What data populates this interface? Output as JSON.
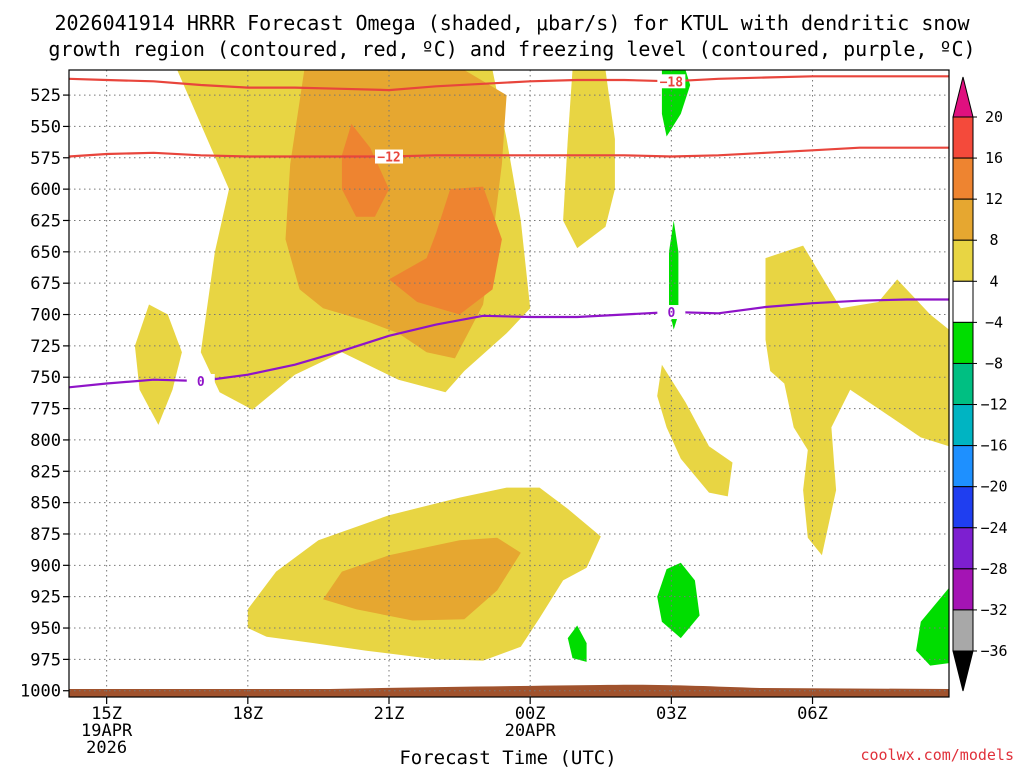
{
  "chart_data": {
    "type": "heatmap",
    "title_line1": "2026041914 HRRR Forecast Omega (shaded, μbar/s) for KTUL with dendritic snow",
    "title_line2": "growth region (contoured, red, ºC) and freezing level (contoured, purple, ºC)",
    "xlabel": "Forecast Time (UTC)",
    "credit": "coolwx.com/models",
    "x_range_hours": [
      14.2,
      32.9
    ],
    "y_range_mb": [
      1005,
      505
    ],
    "x_ticks": [
      {
        "hour": 15,
        "label": "15Z",
        "sub1": "19APR",
        "sub2": "2026"
      },
      {
        "hour": 18,
        "label": "18Z",
        "sub1": "",
        "sub2": ""
      },
      {
        "hour": 21,
        "label": "21Z",
        "sub1": "",
        "sub2": ""
      },
      {
        "hour": 24,
        "label": "00Z",
        "sub1": "20APR",
        "sub2": ""
      },
      {
        "hour": 27,
        "label": "03Z",
        "sub1": "",
        "sub2": ""
      },
      {
        "hour": 30,
        "label": "06Z",
        "sub1": "",
        "sub2": ""
      }
    ],
    "y_ticks": [
      525,
      550,
      575,
      600,
      625,
      650,
      675,
      700,
      725,
      750,
      775,
      800,
      825,
      850,
      875,
      900,
      925,
      950,
      975,
      1000
    ],
    "colorbar": {
      "labels": [
        "20",
        "16",
        "12",
        "8",
        "4",
        "−4",
        "−8",
        "−12",
        "−16",
        "−20",
        "−24",
        "−28",
        "−32",
        "−36"
      ],
      "colors": [
        "#f44a3b",
        "#ee8430",
        "#e6a730",
        "#e8d543",
        "#ffffff",
        "#00dd00",
        "#00bf82",
        "#00b4c2",
        "#1e90ff",
        "#1f3ef0",
        "#7d1fd0",
        "#a414b4",
        "#a8a8a8"
      ],
      "top_arrow_color": "#e0107f",
      "bottom_arrow_color": "#000000"
    },
    "omega_regions": [
      {
        "level": "4-8",
        "color": "#e8d543",
        "points": [
          [
            16.5,
            505
          ],
          [
            19.8,
            505
          ],
          [
            20.2,
            512
          ],
          [
            21.4,
            505
          ],
          [
            23.2,
            505
          ],
          [
            23.5,
            560
          ],
          [
            23.8,
            625
          ],
          [
            24.0,
            695
          ],
          [
            23.5,
            715
          ],
          [
            22.6,
            745
          ],
          [
            22.2,
            762
          ],
          [
            21.2,
            752
          ],
          [
            20.0,
            730
          ],
          [
            19.0,
            748
          ],
          [
            18.1,
            776
          ],
          [
            17.4,
            762
          ],
          [
            17.0,
            730
          ],
          [
            17.3,
            650
          ],
          [
            17.6,
            600
          ]
        ]
      },
      {
        "level": "4-8",
        "color": "#e8d543",
        "points": [
          [
            24.9,
            505
          ],
          [
            25.6,
            505
          ],
          [
            25.8,
            560
          ],
          [
            25.8,
            600
          ],
          [
            25.6,
            630
          ],
          [
            25.0,
            647
          ],
          [
            24.7,
            625
          ],
          [
            24.8,
            560
          ]
        ]
      },
      {
        "level": "4-8",
        "color": "#e8d543",
        "points": [
          [
            15.6,
            725
          ],
          [
            15.9,
            692
          ],
          [
            16.3,
            700
          ],
          [
            16.6,
            730
          ],
          [
            16.4,
            760
          ],
          [
            16.1,
            788
          ],
          [
            15.7,
            760
          ]
        ]
      },
      {
        "level": "4-8",
        "color": "#e8d543",
        "points": [
          [
            18.0,
            935
          ],
          [
            18.6,
            905
          ],
          [
            19.5,
            880
          ],
          [
            21.0,
            860
          ],
          [
            22.5,
            846
          ],
          [
            23.5,
            838
          ],
          [
            24.2,
            838
          ],
          [
            24.8,
            855
          ],
          [
            25.5,
            877
          ],
          [
            25.2,
            902
          ],
          [
            24.7,
            912
          ],
          [
            24.2,
            942
          ],
          [
            23.8,
            965
          ],
          [
            23.0,
            976
          ],
          [
            22.0,
            975
          ],
          [
            20.5,
            968
          ],
          [
            19.4,
            962
          ],
          [
            18.4,
            957
          ],
          [
            18.0,
            950
          ]
        ]
      },
      {
        "level": "4-8",
        "color": "#e8d543",
        "points": [
          [
            26.8,
            740
          ],
          [
            27.3,
            770
          ],
          [
            27.8,
            805
          ],
          [
            28.3,
            818
          ],
          [
            28.2,
            845
          ],
          [
            27.8,
            842
          ],
          [
            27.2,
            815
          ],
          [
            26.9,
            790
          ],
          [
            26.7,
            765
          ]
        ]
      },
      {
        "level": "4-8",
        "color": "#e8d543",
        "points": [
          [
            29.0,
            655
          ],
          [
            29.8,
            645
          ],
          [
            30.6,
            695
          ],
          [
            31.4,
            690
          ],
          [
            31.8,
            672
          ],
          [
            32.5,
            700
          ],
          [
            32.9,
            712
          ],
          [
            32.9,
            805
          ],
          [
            32.3,
            798
          ],
          [
            31.4,
            775
          ],
          [
            30.8,
            760
          ],
          [
            30.4,
            790
          ],
          [
            30.5,
            840
          ],
          [
            30.2,
            892
          ],
          [
            29.9,
            878
          ],
          [
            29.8,
            840
          ],
          [
            29.9,
            808
          ],
          [
            29.6,
            790
          ],
          [
            29.4,
            755
          ],
          [
            29.1,
            745
          ],
          [
            29.0,
            720
          ]
        ]
      },
      {
        "level": "8-12",
        "color": "#e6a730",
        "points": [
          [
            19.2,
            505
          ],
          [
            20.2,
            505
          ],
          [
            21.4,
            505
          ],
          [
            22.6,
            505
          ],
          [
            23.5,
            525
          ],
          [
            23.4,
            580
          ],
          [
            23.2,
            640
          ],
          [
            23.0,
            692
          ],
          [
            22.4,
            735
          ],
          [
            21.8,
            730
          ],
          [
            21.2,
            715
          ],
          [
            20.5,
            705
          ],
          [
            19.6,
            695
          ],
          [
            19.1,
            680
          ],
          [
            18.8,
            640
          ],
          [
            18.9,
            580
          ]
        ]
      },
      {
        "level": "8-12",
        "color": "#e6a730",
        "points": [
          [
            19.6,
            927
          ],
          [
            20.0,
            905
          ],
          [
            21.0,
            892
          ],
          [
            22.5,
            880
          ],
          [
            23.3,
            878
          ],
          [
            23.8,
            890
          ],
          [
            23.3,
            920
          ],
          [
            22.6,
            943
          ],
          [
            21.5,
            944
          ],
          [
            20.3,
            935
          ]
        ]
      },
      {
        "level": "12-16",
        "color": "#ee8430",
        "points": [
          [
            20.0,
            573
          ],
          [
            20.2,
            548
          ],
          [
            20.6,
            567
          ],
          [
            21.0,
            600
          ],
          [
            20.7,
            622
          ],
          [
            20.3,
            622
          ],
          [
            20.0,
            600
          ]
        ]
      },
      {
        "level": "12-16",
        "color": "#ee8430",
        "points": [
          [
            21.0,
            672
          ],
          [
            21.8,
            655
          ],
          [
            22.0,
            635
          ],
          [
            22.3,
            600
          ],
          [
            23.0,
            598
          ],
          [
            23.4,
            640
          ],
          [
            23.2,
            680
          ],
          [
            22.5,
            700
          ],
          [
            21.6,
            690
          ]
        ]
      },
      {
        "level": "-4-(-8)",
        "color": "#00dd00",
        "points": [
          [
            26.8,
            510
          ],
          [
            26.8,
            505
          ],
          [
            27.3,
            505
          ],
          [
            27.4,
            517
          ],
          [
            27.2,
            540
          ],
          [
            26.9,
            558
          ],
          [
            26.8,
            540
          ]
        ]
      },
      {
        "level": "-4-(-8)",
        "color": "#00dd00",
        "points": [
          [
            26.95,
            650
          ],
          [
            27.05,
            625
          ],
          [
            27.15,
            650
          ],
          [
            27.15,
            700
          ],
          [
            27.05,
            712
          ],
          [
            26.95,
            695
          ]
        ]
      },
      {
        "level": "-4-(-8)",
        "color": "#00dd00",
        "points": [
          [
            26.7,
            925
          ],
          [
            26.9,
            903
          ],
          [
            27.2,
            898
          ],
          [
            27.5,
            912
          ],
          [
            27.6,
            940
          ],
          [
            27.2,
            958
          ],
          [
            26.8,
            945
          ]
        ]
      },
      {
        "level": "-4-(-8)",
        "color": "#00dd00",
        "points": [
          [
            24.8,
            958
          ],
          [
            25.0,
            948
          ],
          [
            25.2,
            962
          ],
          [
            25.2,
            977
          ],
          [
            24.9,
            974
          ]
        ]
      },
      {
        "level": "-4-(-8)",
        "color": "#00dd00",
        "points": [
          [
            32.2,
            968
          ],
          [
            32.3,
            945
          ],
          [
            32.9,
            918
          ],
          [
            32.9,
            978
          ],
          [
            32.5,
            980
          ]
        ]
      }
    ],
    "isotherms": [
      {
        "label": "−18",
        "color": "#e8453c",
        "label_hour": 27.0,
        "points": [
          [
            14.2,
            512
          ],
          [
            15.0,
            513
          ],
          [
            16.0,
            514
          ],
          [
            17.0,
            517
          ],
          [
            18.0,
            519
          ],
          [
            19.0,
            519
          ],
          [
            20.0,
            520
          ],
          [
            21.0,
            521
          ],
          [
            22.0,
            518
          ],
          [
            23.0,
            516
          ],
          [
            24.0,
            514
          ],
          [
            25.0,
            513
          ],
          [
            26.0,
            513
          ],
          [
            27.0,
            514
          ],
          [
            28.0,
            512
          ],
          [
            29.0,
            511
          ],
          [
            30.0,
            510
          ],
          [
            31.0,
            510
          ],
          [
            32.0,
            510
          ],
          [
            32.9,
            510
          ]
        ]
      },
      {
        "label": "−12",
        "color": "#e8453c",
        "label_hour": 21.0,
        "points": [
          [
            14.2,
            574
          ],
          [
            15.0,
            572
          ],
          [
            16.0,
            571
          ],
          [
            17.0,
            573
          ],
          [
            18.0,
            574
          ],
          [
            19.0,
            574
          ],
          [
            20.0,
            574
          ],
          [
            21.0,
            574
          ],
          [
            22.0,
            573
          ],
          [
            23.0,
            573
          ],
          [
            24.0,
            573
          ],
          [
            25.0,
            573
          ],
          [
            26.0,
            573
          ],
          [
            27.0,
            574
          ],
          [
            28.0,
            573
          ],
          [
            29.0,
            571
          ],
          [
            30.0,
            569
          ],
          [
            31.0,
            567
          ],
          [
            32.0,
            567
          ],
          [
            32.9,
            567
          ]
        ]
      },
      {
        "label": "0",
        "color": "#8f14c8",
        "label_hour": 17.0,
        "label_hour2": 27.0,
        "points": [
          [
            14.2,
            758
          ],
          [
            15.0,
            755
          ],
          [
            16.0,
            752
          ],
          [
            17.0,
            753
          ],
          [
            18.0,
            748
          ],
          [
            19.0,
            740
          ],
          [
            20.0,
            729
          ],
          [
            21.0,
            717
          ],
          [
            22.0,
            708
          ],
          [
            23.0,
            701
          ],
          [
            24.0,
            702
          ],
          [
            25.0,
            702
          ],
          [
            26.0,
            700
          ],
          [
            27.0,
            698
          ],
          [
            28.0,
            699
          ],
          [
            29.0,
            694
          ],
          [
            30.0,
            691
          ],
          [
            31.0,
            689
          ],
          [
            32.0,
            688
          ],
          [
            32.9,
            688
          ]
        ]
      }
    ]
  }
}
